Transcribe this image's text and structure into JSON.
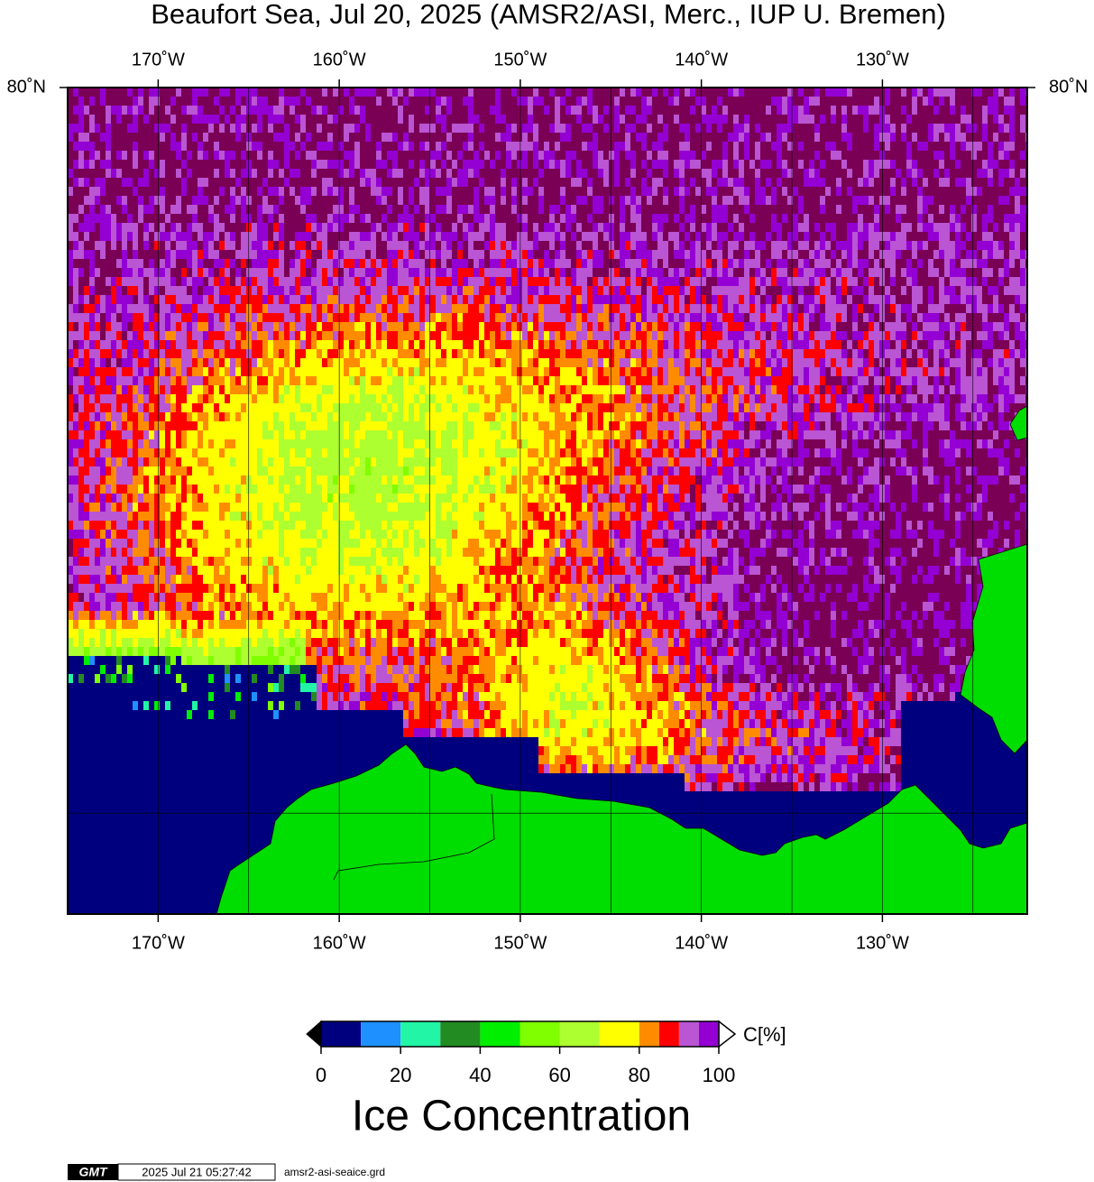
{
  "title": "Beaufort Sea, Jul 20, 2025 (AMSR2/ASI, Merc., IUP U. Bremen)",
  "map": {
    "lonlim": [
      -175,
      -122
    ],
    "latlim": [
      68,
      80
    ],
    "lon_ticks": [
      {
        "value": -170,
        "label": "170˚W"
      },
      {
        "value": -165,
        "label": null
      },
      {
        "value": -160,
        "label": "160˚W"
      },
      {
        "value": -155,
        "label": null
      },
      {
        "value": -150,
        "label": "150˚W"
      },
      {
        "value": -145,
        "label": null
      },
      {
        "value": -140,
        "label": "140˚W"
      },
      {
        "value": -135,
        "label": null
      },
      {
        "value": -130,
        "label": "130˚W"
      },
      {
        "value": -125,
        "label": null
      }
    ],
    "lat_ticks": [
      {
        "value": 70,
        "label": null
      },
      {
        "value": 80,
        "label": "80˚N"
      }
    ]
  },
  "colorbar": {
    "label": "C[%]",
    "title": "Ice Concentration",
    "bounds": [
      0,
      10,
      20,
      30,
      40,
      50,
      60,
      70,
      80,
      85,
      90,
      95,
      100
    ],
    "colors": [
      "#00007f",
      "#1e90ff",
      "#22f5a6",
      "#228b22",
      "#00ee00",
      "#7fff00",
      "#adff2f",
      "#ffff00",
      "#ff8c00",
      "#ff0000",
      "#ba55d3",
      "#9400d3"
    ],
    "ticks": [
      0,
      20,
      40,
      60,
      80,
      100
    ]
  },
  "footer": {
    "logo": "GMT",
    "timestamp": "2025 Jul 21 05:27:42",
    "file": "amsr2-asi-seaice.grd"
  }
}
